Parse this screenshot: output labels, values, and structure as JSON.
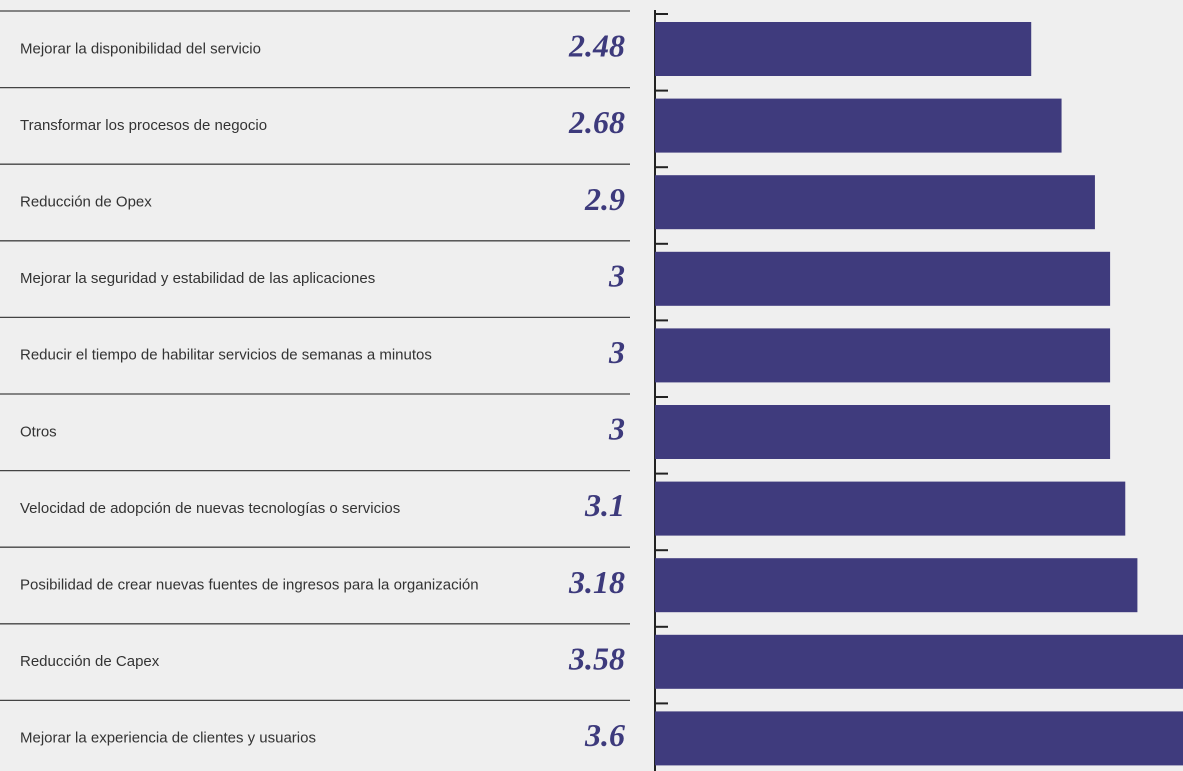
{
  "chart_data": {
    "type": "bar",
    "orientation": "horizontal",
    "categories": [
      "Mejorar la disponibilidad del servicio",
      "Transformar los procesos de negocio",
      "Reducción de Opex",
      "Mejorar la seguridad y estabilidad de las aplicaciones",
      "Reducir el tiempo de habilitar servicios de semanas a minutos",
      "Otros",
      "Velocidad de adopción de nuevas tecnologías o servicios",
      "Posibilidad de crear nuevas fuentes de ingresos para la organización",
      "Reducción de Capex",
      "Mejorar la experiencia de clientes y usuarios"
    ],
    "values": [
      2.48,
      2.68,
      2.9,
      3,
      3,
      3,
      3.1,
      3.18,
      3.58,
      3.6
    ],
    "color": "#3f3b7d"
  }
}
